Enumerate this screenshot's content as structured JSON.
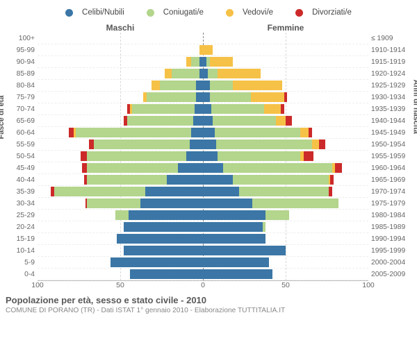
{
  "legend": [
    {
      "label": "Celibi/Nubili",
      "color": "#3b76a6"
    },
    {
      "label": "Coniugati/e",
      "color": "#b3d58c"
    },
    {
      "label": "Vedovi/e",
      "color": "#f6c147"
    },
    {
      "label": "Divorziati/e",
      "color": "#cc2a2a"
    }
  ],
  "headers": {
    "left": "Maschi",
    "right": "Femmine"
  },
  "ylabel_left": "Fasce di età",
  "ylabel_right": "Anni di nascita",
  "xlim": 100,
  "xticks": [
    100,
    50,
    0,
    50,
    100
  ],
  "grid_color": "#d8d8d8",
  "center_color": "#888",
  "background": "#ffffff",
  "title": "Popolazione per età, sesso e stato civile - 2010",
  "subtitle": "COMUNE DI PORANO (TR) - Dati ISTAT 1° gennaio 2010 - Elaborazione TUTTITALIA.IT",
  "age_labels": [
    "100+",
    "95-99",
    "90-94",
    "85-89",
    "80-84",
    "75-79",
    "70-74",
    "65-69",
    "60-64",
    "55-59",
    "50-54",
    "45-49",
    "40-44",
    "35-39",
    "30-34",
    "25-29",
    "20-24",
    "15-19",
    "10-14",
    "5-9",
    "0-4"
  ],
  "birth_labels": [
    "≤ 1909",
    "1910-1914",
    "1915-1919",
    "1920-1924",
    "1925-1929",
    "1930-1934",
    "1935-1939",
    "1940-1944",
    "1945-1949",
    "1950-1954",
    "1955-1959",
    "1960-1964",
    "1965-1969",
    "1970-1974",
    "1975-1979",
    "1980-1984",
    "1985-1989",
    "1990-1994",
    "1995-1999",
    "2000-2004",
    "2005-2009"
  ],
  "rows": [
    {
      "m": {
        "c": 0,
        "co": 0,
        "v": 0,
        "d": 0
      },
      "f": {
        "c": 0,
        "co": 0,
        "v": 0,
        "d": 0
      }
    },
    {
      "m": {
        "c": 0,
        "co": 0,
        "v": 2,
        "d": 0
      },
      "f": {
        "c": 0,
        "co": 0,
        "v": 6,
        "d": 0
      }
    },
    {
      "m": {
        "c": 2,
        "co": 5,
        "v": 3,
        "d": 0
      },
      "f": {
        "c": 2,
        "co": 2,
        "v": 14,
        "d": 0
      }
    },
    {
      "m": {
        "c": 2,
        "co": 17,
        "v": 4,
        "d": 0
      },
      "f": {
        "c": 3,
        "co": 6,
        "v": 26,
        "d": 0
      }
    },
    {
      "m": {
        "c": 4,
        "co": 22,
        "v": 5,
        "d": 0
      },
      "f": {
        "c": 4,
        "co": 14,
        "v": 30,
        "d": 0
      }
    },
    {
      "m": {
        "c": 4,
        "co": 30,
        "v": 2,
        "d": 0
      },
      "f": {
        "c": 4,
        "co": 25,
        "v": 20,
        "d": 2
      }
    },
    {
      "m": {
        "c": 5,
        "co": 38,
        "v": 1,
        "d": 2
      },
      "f": {
        "c": 5,
        "co": 32,
        "v": 10,
        "d": 2
      }
    },
    {
      "m": {
        "c": 6,
        "co": 40,
        "v": 0,
        "d": 2
      },
      "f": {
        "c": 6,
        "co": 38,
        "v": 6,
        "d": 4
      }
    },
    {
      "m": {
        "c": 7,
        "co": 70,
        "v": 1,
        "d": 3
      },
      "f": {
        "c": 7,
        "co": 52,
        "v": 5,
        "d": 2
      }
    },
    {
      "m": {
        "c": 8,
        "co": 58,
        "v": 0,
        "d": 3
      },
      "f": {
        "c": 8,
        "co": 58,
        "v": 4,
        "d": 4
      }
    },
    {
      "m": {
        "c": 10,
        "co": 60,
        "v": 0,
        "d": 4
      },
      "f": {
        "c": 9,
        "co": 50,
        "v": 2,
        "d": 6
      }
    },
    {
      "m": {
        "c": 15,
        "co": 55,
        "v": 0,
        "d": 3
      },
      "f": {
        "c": 12,
        "co": 66,
        "v": 2,
        "d": 4
      }
    },
    {
      "m": {
        "c": 22,
        "co": 48,
        "v": 0,
        "d": 2
      },
      "f": {
        "c": 18,
        "co": 58,
        "v": 1,
        "d": 2
      }
    },
    {
      "m": {
        "c": 35,
        "co": 55,
        "v": 0,
        "d": 2
      },
      "f": {
        "c": 22,
        "co": 54,
        "v": 0,
        "d": 2
      }
    },
    {
      "m": {
        "c": 38,
        "co": 32,
        "v": 0,
        "d": 1
      },
      "f": {
        "c": 30,
        "co": 52,
        "v": 0,
        "d": 0
      }
    },
    {
      "m": {
        "c": 45,
        "co": 8,
        "v": 0,
        "d": 0
      },
      "f": {
        "c": 38,
        "co": 14,
        "v": 0,
        "d": 0
      }
    },
    {
      "m": {
        "c": 48,
        "co": 0,
        "v": 0,
        "d": 0
      },
      "f": {
        "c": 36,
        "co": 2,
        "v": 0,
        "d": 0
      }
    },
    {
      "m": {
        "c": 52,
        "co": 0,
        "v": 0,
        "d": 0
      },
      "f": {
        "c": 38,
        "co": 0,
        "v": 0,
        "d": 0
      }
    },
    {
      "m": {
        "c": 48,
        "co": 0,
        "v": 0,
        "d": 0
      },
      "f": {
        "c": 50,
        "co": 0,
        "v": 0,
        "d": 0
      }
    },
    {
      "m": {
        "c": 56,
        "co": 0,
        "v": 0,
        "d": 0
      },
      "f": {
        "c": 40,
        "co": 0,
        "v": 0,
        "d": 0
      }
    },
    {
      "m": {
        "c": 44,
        "co": 0,
        "v": 0,
        "d": 0
      },
      "f": {
        "c": 42,
        "co": 0,
        "v": 0,
        "d": 0
      }
    }
  ]
}
